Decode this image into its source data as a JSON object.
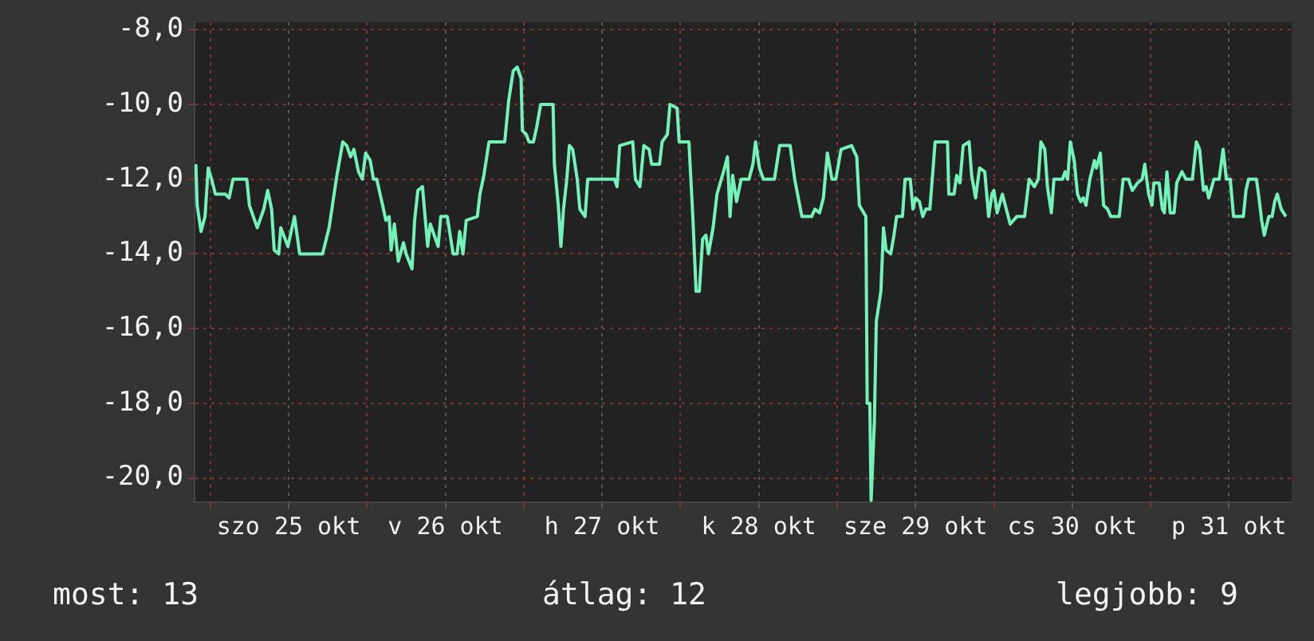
{
  "chart_data": {
    "type": "line",
    "x": [
      "--10-24T21:48",
      "--10-24T22:00",
      "--10-24T22:36",
      "--10-24T23:12",
      "--10-24T23:42",
      "--10-25T00:12",
      "--10-25T00:48",
      "--10-25T02:18",
      "--10-25T02:54",
      "--10-25T03:30",
      "--10-25T05:36",
      "--10-25T06:00",
      "--10-25T07:12",
      "--10-25T08:12",
      "--10-25T08:48",
      "--10-25T09:24",
      "--10-25T09:48",
      "--10-25T10:30",
      "--10-25T10:48",
      "--10-25T11:54",
      "--10-25T12:54",
      "--10-25T13:18",
      "--10-25T13:42",
      "--10-25T17:12",
      "--10-25T18:12",
      "--10-25T19:24",
      "--10-25T20:18",
      "--10-25T20:54",
      "--10-25T21:30",
      "--10-25T22:00",
      "--10-25T22:42",
      "--10-25T23:18",
      "--10-25T23:48",
      "--10-26T00:30",
      "--10-26T01:00",
      "--10-26T01:30",
      "--10-26T02:24",
      "--10-26T02:54",
      "--10-26T03:24",
      "--10-26T03:42",
      "--10-26T04:12",
      "--10-26T04:48",
      "--10-26T05:36",
      "--10-26T06:00",
      "--10-26T06:54",
      "--10-26T07:18",
      "--10-26T07:48",
      "--10-26T08:30",
      "--10-26T09:18",
      "--10-26T09:42",
      "--10-26T10:54",
      "--10-26T11:18",
      "--10-26T12:18",
      "--10-26T13:12",
      "--10-26T13:48",
      "--10-26T14:12",
      "--10-26T14:42",
      "--10-26T15:12",
      "--10-26T16:54",
      "--10-26T17:18",
      "--10-26T17:54",
      "--10-26T18:42",
      "--10-26T21:06",
      "--10-26T21:42",
      "--10-26T22:24",
      "--10-26T23:00",
      "--10-26T23:36",
      "--10-26T23:48",
      "--10-27T00:24",
      "--10-27T00:48",
      "--10-27T01:30",
      "--10-27T02:00",
      "--10-27T02:36",
      "--10-27T04:30",
      "--10-27T04:42",
      "--10-27T05:18",
      "--10-27T05:42",
      "--10-27T06:06",
      "--10-27T06:36",
      "--10-27T07:00",
      "--10-27T07:30",
      "--10-27T08:12",
      "--10-27T08:36",
      "--10-27T09:24",
      "--10-27T09:48",
      "--10-27T13:54",
      "--10-27T14:18",
      "--10-27T14:42",
      "--10-27T16:42",
      "--10-27T17:06",
      "--10-27T17:48",
      "--10-27T18:24",
      "--10-27T19:12",
      "--10-27T19:36",
      "--10-27T20:48",
      "--10-27T21:12",
      "--10-27T22:00",
      "--10-27T22:24",
      "--10-27T23:30",
      "--10-27T23:48",
      "--10-28T01:18",
      "--10-28T01:54",
      "--10-28T02:24",
      "--10-28T02:54",
      "--10-28T03:24",
      "--10-28T03:54",
      "--10-28T04:18",
      "--10-28T05:00",
      "--10-28T05:36",
      "--10-28T06:36",
      "--10-28T07:12",
      "--10-28T07:36",
      "--10-28T08:00",
      "--10-28T08:36",
      "--10-28T09:18",
      "--10-28T10:30",
      "--10-28T11:06",
      "--10-28T11:30",
      "--10-28T12:06",
      "--10-28T12:42",
      "--10-28T14:24",
      "--10-28T15:12",
      "--10-28T16:48",
      "--10-28T17:30",
      "--10-28T18:36",
      "--10-28T20:06",
      "--10-28T20:36",
      "--10-28T21:18",
      "--10-28T21:54",
      "--10-28T22:30",
      "--10-28T23:12",
      "--10-28T23:48",
      "--10-29T00:36",
      "--10-29T02:12",
      "--10-29T03:00",
      "--10-29T03:24",
      "--10-29T04:24",
      "--10-29T04:36",
      "--10-29T05:00",
      "--10-29T05:12",
      "--10-29T05:42",
      "--10-29T06:00",
      "--10-29T06:42",
      "--10-29T07:06",
      "--10-29T07:30",
      "--10-29T08:12",
      "--10-29T08:42",
      "--10-29T09:06",
      "--10-29T10:00",
      "--10-29T10:24",
      "--10-29T11:12",
      "--10-29T11:36",
      "--10-29T12:00",
      "--10-29T12:36",
      "--10-29T13:06",
      "--10-29T13:36",
      "--10-29T14:12",
      "--10-29T14:42",
      "--10-29T15:00",
      "--10-29T16:54",
      "--10-29T17:06",
      "--10-29T17:54",
      "--10-29T18:18",
      "--10-29T18:48",
      "--10-29T19:18",
      "--10-29T20:12",
      "--10-29T20:36",
      "--10-29T21:12",
      "--10-29T21:48",
      "--10-29T22:36",
      "--10-29T23:12",
      "--10-29T23:42",
      "--10-30T00:00",
      "--10-30T00:30",
      "--10-30T01:18",
      "--10-30T01:54",
      "--10-30T02:30",
      "--10-30T03:30",
      "--10-30T04:42",
      "--10-30T05:24",
      "--10-30T06:12",
      "--10-30T06:48",
      "--10-30T07:12",
      "--10-30T07:48",
      "--10-30T08:12",
      "--10-30T08:48",
      "--10-30T09:12",
      "--10-30T10:30",
      "--10-30T10:54",
      "--10-30T11:18",
      "--10-30T11:42",
      "--10-30T12:18",
      "--10-30T12:48",
      "--10-30T13:18",
      "--10-30T13:42",
      "--10-30T14:06",
      "--10-30T14:42",
      "--10-30T15:24",
      "--10-30T15:42",
      "--10-30T16:18",
      "--10-30T16:48",
      "--10-30T17:24",
      "--10-30T17:54",
      "--10-30T19:12",
      "--10-30T19:48",
      "--10-30T20:36",
      "--10-30T21:12",
      "--10-30T22:00",
      "--10-30T22:42",
      "--10-30T23:06",
      "--10-30T23:42",
      "--10-31T00:12",
      "--10-31T00:30",
      "--10-31T01:18",
      "--10-31T01:48",
      "--10-31T02:06",
      "--10-31T02:30",
      "--10-31T03:00",
      "--10-31T03:36",
      "--10-31T04:00",
      "--10-31T04:48",
      "--10-31T05:24",
      "--10-31T06:24",
      "--10-31T07:00",
      "--10-31T07:30",
      "--10-31T08:06",
      "--10-31T08:30",
      "--10-31T08:54",
      "--10-31T09:42",
      "--10-31T10:30",
      "--10-31T11:06",
      "--10-31T11:36",
      "--10-31T12:12",
      "--10-31T12:42",
      "--10-31T14:12",
      "--10-31T14:36",
      "--10-31T15:00",
      "--10-31T16:12",
      "--10-31T16:36",
      "--10-31T17:00",
      "--10-31T17:24",
      "--10-31T18:06",
      "--10-31T18:36",
      "--10-31T19:00",
      "--10-31T19:24",
      "--10-31T20:00",
      "--10-31T20:42"
    ],
    "series": [
      {
        "color": "#74f2b8",
        "values": [
          -11.6,
          -12.7,
          -13.4,
          -13.0,
          -11.7,
          -12.0,
          -12.4,
          -12.4,
          -12.5,
          -12.0,
          -12.0,
          -12.7,
          -13.3,
          -12.8,
          -12.3,
          -12.8,
          -13.9,
          -14.0,
          -13.3,
          -13.8,
          -13.0,
          -13.5,
          -14.0,
          -14.0,
          -13.3,
          -11.9,
          -11.0,
          -11.1,
          -11.4,
          -11.2,
          -11.8,
          -12.0,
          -11.3,
          -11.5,
          -12.0,
          -12.0,
          -12.7,
          -13.1,
          -13.0,
          -13.9,
          -13.2,
          -14.2,
          -13.7,
          -14.0,
          -14.4,
          -13.1,
          -12.3,
          -12.2,
          -13.8,
          -13.2,
          -13.8,
          -13.0,
          -13.0,
          -14.0,
          -14.0,
          -13.4,
          -14.0,
          -13.1,
          -13.0,
          -12.4,
          -11.9,
          -11.0,
          -11.0,
          -9.9,
          -9.1,
          -9.0,
          -9.3,
          -10.7,
          -10.8,
          -11.0,
          -11.0,
          -10.6,
          -10.0,
          -10.0,
          -11.6,
          -12.7,
          -13.8,
          -12.8,
          -12.0,
          -11.1,
          -11.2,
          -12.0,
          -12.8,
          -13.0,
          -12.0,
          -12.0,
          -12.2,
          -11.1,
          -11.0,
          -12.0,
          -12.2,
          -11.1,
          -11.2,
          -11.6,
          -11.6,
          -11.0,
          -10.8,
          -10.0,
          -10.1,
          -11.0,
          -11.0,
          -13.0,
          -15.0,
          -15.0,
          -13.6,
          -13.5,
          -14.0,
          -13.3,
          -12.4,
          -11.8,
          -11.4,
          -13.0,
          -11.9,
          -12.6,
          -12.0,
          -12.0,
          -11.6,
          -11.0,
          -11.7,
          -12.0,
          -12.0,
          -11.1,
          -11.1,
          -12.0,
          -13.0,
          -13.0,
          -12.8,
          -12.9,
          -12.5,
          -11.3,
          -12.0,
          -12.0,
          -11.2,
          -11.1,
          -11.4,
          -12.7,
          -13.0,
          -18.0,
          -18.0,
          -20.6,
          -18.5,
          -15.8,
          -15.0,
          -13.3,
          -13.9,
          -14.0,
          -13.5,
          -13.0,
          -13.0,
          -12.0,
          -12.0,
          -12.8,
          -12.5,
          -12.6,
          -13.0,
          -12.8,
          -12.8,
          -11.7,
          -11.0,
          -11.0,
          -12.4,
          -12.4,
          -11.9,
          -12.1,
          -11.1,
          -11.0,
          -11.9,
          -12.5,
          -11.7,
          -11.8,
          -13.0,
          -12.4,
          -12.3,
          -12.9,
          -12.4,
          -12.8,
          -13.2,
          -13.0,
          -13.0,
          -12.0,
          -12.2,
          -12.0,
          -11.0,
          -11.2,
          -12.2,
          -12.9,
          -12.0,
          -12.0,
          -11.8,
          -12.0,
          -11.0,
          -11.5,
          -12.4,
          -12.6,
          -12.5,
          -12.7,
          -12.0,
          -11.5,
          -11.7,
          -11.3,
          -12.7,
          -12.8,
          -13.0,
          -13.0,
          -12.0,
          -12.0,
          -12.3,
          -12.1,
          -12.0,
          -11.6,
          -12.4,
          -12.7,
          -12.1,
          -12.1,
          -12.8,
          -12.9,
          -11.8,
          -12.9,
          -12.9,
          -12.1,
          -11.8,
          -12.0,
          -12.0,
          -11.0,
          -11.2,
          -12.3,
          -12.2,
          -12.5,
          -12.0,
          -12.0,
          -11.2,
          -12.0,
          -12.0,
          -13.0,
          -13.0,
          -12.3,
          -12.0,
          -12.0,
          -12.5,
          -13.1,
          -13.5,
          -13.0,
          -13.0,
          -12.6,
          -12.4,
          -12.8,
          -13.0
        ]
      }
    ],
    "xlim": [
      "--10-24T21:36",
      "--10-31T21:36"
    ],
    "xticks": [
      {
        "value": "--10-25T00:00",
        "label": null
      },
      {
        "value": "--10-25T12:00",
        "label": "szo 25 okt"
      },
      {
        "value": "--10-26T00:00",
        "label": null
      },
      {
        "value": "--10-26T12:00",
        "label": "v 26 okt"
      },
      {
        "value": "--10-27T00:00",
        "label": null
      },
      {
        "value": "--10-27T12:00",
        "label": "h 27 okt"
      },
      {
        "value": "--10-28T00:00",
        "label": null
      },
      {
        "value": "--10-28T12:00",
        "label": "k 28 okt"
      },
      {
        "value": "--10-29T00:00",
        "label": null
      },
      {
        "value": "--10-29T12:00",
        "label": "sze 29 okt"
      },
      {
        "value": "--10-30T00:00",
        "label": null
      },
      {
        "value": "--10-30T12:00",
        "label": "cs 30 okt"
      },
      {
        "value": "--10-31T00:00",
        "label": null
      },
      {
        "value": "--10-31T12:00",
        "label": "p 31 okt"
      }
    ],
    "ylim": [
      -20.65,
      -7.8
    ],
    "yticks": [
      {
        "value": -8,
        "label": "-8,0"
      },
      {
        "value": -10,
        "label": "-10,0"
      },
      {
        "value": -12,
        "label": "-12,0"
      },
      {
        "value": -14,
        "label": "-14,0"
      },
      {
        "value": -16,
        "label": "-16,0"
      },
      {
        "value": -18,
        "label": "-18,0"
      },
      {
        "value": -20,
        "label": "-20,0"
      }
    ],
    "grid": true,
    "annotations": [
      "most: 13",
      "átlag: 12",
      "legjobb: 9"
    ]
  }
}
